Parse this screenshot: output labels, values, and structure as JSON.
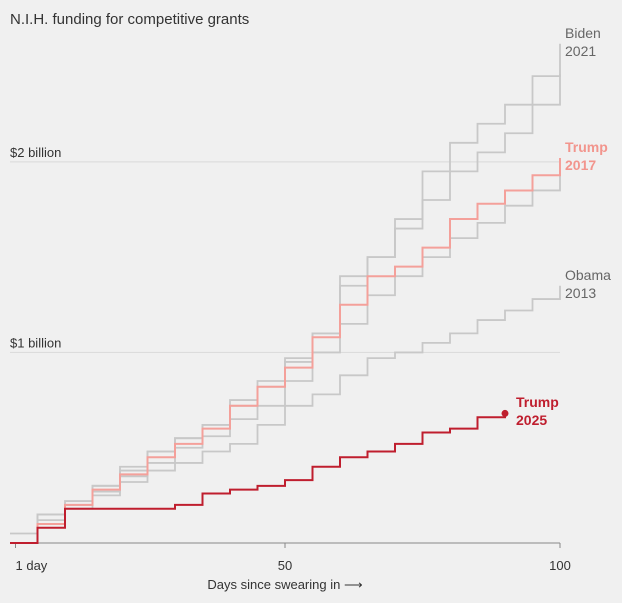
{
  "chart_data": {
    "type": "step-line",
    "title": "N.I.H. funding for competitive grants",
    "x_label": "Days since swearing in ⟶",
    "x": [
      0,
      5,
      10,
      15,
      20,
      25,
      30,
      35,
      40,
      45,
      50,
      55,
      60,
      65,
      70,
      75,
      80,
      85,
      90,
      95,
      100
    ],
    "xlim": [
      0,
      100
    ],
    "xticks": [
      {
        "value": 1,
        "label": "1 day"
      },
      50,
      100
    ],
    "ylim": [
      0,
      2.65
    ],
    "yticks": [
      {
        "value": 1,
        "label": "$1 billion"
      },
      {
        "value": 2,
        "label": "$2 billion"
      }
    ],
    "grid": true,
    "series": [
      {
        "color": "#c8c8c8",
        "values": [
          0,
          0.12,
          0.2,
          0.3,
          0.4,
          0.48,
          0.55,
          0.62,
          0.75,
          0.85,
          0.97,
          1.1,
          1.4,
          1.5,
          1.65,
          1.8,
          1.95,
          2.05,
          2.15,
          2.3,
          2.46
        ]
      },
      {
        "color": "#c8c8c8",
        "values": [
          0,
          0.1,
          0.18,
          0.25,
          0.35,
          0.42,
          0.5,
          0.56,
          0.65,
          0.72,
          0.85,
          1.0,
          1.15,
          1.3,
          1.4,
          1.5,
          1.6,
          1.68,
          1.77,
          1.85,
          1.95
        ]
      },
      {
        "name": "Obama 2013",
        "color": "#c8c8c8",
        "label_color": "#666666",
        "values": [
          0.05,
          0.15,
          0.2,
          0.27,
          0.32,
          0.38,
          0.42,
          0.48,
          0.52,
          0.62,
          0.72,
          0.78,
          0.88,
          0.97,
          1.0,
          1.05,
          1.1,
          1.17,
          1.22,
          1.28,
          1.35
        ]
      },
      {
        "name": "Biden 2021",
        "color": "#c8c8c8",
        "label_color": "#666666",
        "values": [
          0,
          0.15,
          0.22,
          0.3,
          0.38,
          0.48,
          0.55,
          0.62,
          0.72,
          0.82,
          0.95,
          1.1,
          1.35,
          1.5,
          1.7,
          1.95,
          2.1,
          2.2,
          2.3,
          2.45,
          2.62
        ]
      },
      {
        "name": "Trump 2017",
        "color": "#f4a09a",
        "label_color": "#f2958d",
        "bold": true,
        "values": [
          0,
          0.1,
          0.2,
          0.28,
          0.36,
          0.45,
          0.52,
          0.6,
          0.72,
          0.82,
          0.92,
          1.08,
          1.25,
          1.4,
          1.45,
          1.55,
          1.7,
          1.78,
          1.85,
          1.93,
          2.02
        ]
      },
      {
        "name": "Trump 2025",
        "color": "#bf1e2e",
        "label_color": "#bf1e2e",
        "bold": true,
        "end_dot": true,
        "values": [
          0,
          0.08,
          0.18,
          0.18,
          0.18,
          0.18,
          0.2,
          0.26,
          0.28,
          0.3,
          0.33,
          0.4,
          0.45,
          0.48,
          0.52,
          0.58,
          0.6,
          0.66,
          0.68,
          null,
          null
        ]
      }
    ]
  }
}
